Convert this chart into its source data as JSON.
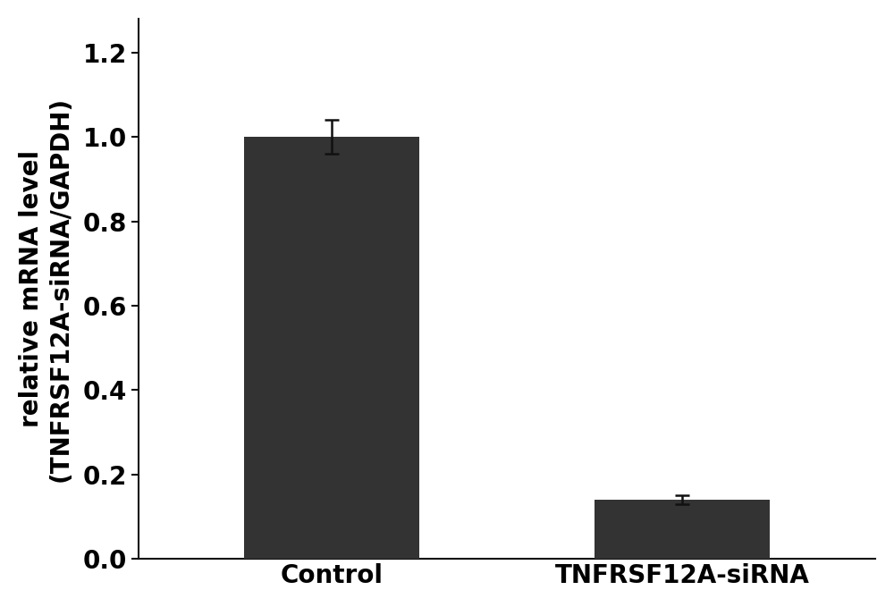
{
  "categories": [
    "Control",
    "TNFRSF12A-siRNA"
  ],
  "values": [
    1.0,
    0.14
  ],
  "errors": [
    0.04,
    0.01
  ],
  "bar_color": "#333333",
  "bar_width": 0.5,
  "ylabel_line1": "relative mRNA level",
  "ylabel_line2": "(TNFRSF12A-siRNA/GAPDH)",
  "ylim": [
    0.0,
    1.28
  ],
  "yticks": [
    0.0,
    0.2,
    0.4,
    0.6,
    0.8,
    1.0,
    1.2
  ],
  "background_color": "#ffffff",
  "tick_fontsize": 20,
  "label_fontsize": 20,
  "error_capsize": 6,
  "error_linewidth": 1.8,
  "error_color": "#111111",
  "font_weight": "bold"
}
